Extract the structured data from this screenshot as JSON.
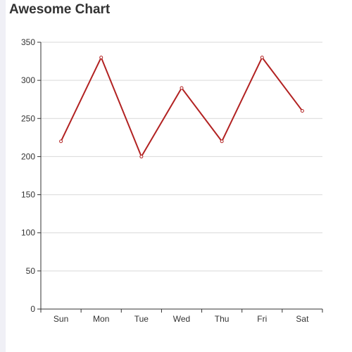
{
  "title": "Awesome Chart",
  "chart_data": {
    "type": "line",
    "title": "Awesome Chart",
    "categories": [
      "Sun",
      "Mon",
      "Tue",
      "Wed",
      "Thu",
      "Fri",
      "Sat"
    ],
    "series": [
      {
        "values": [
          220,
          330,
          200,
          290,
          220,
          330,
          260
        ]
      }
    ],
    "ylim": [
      0,
      350
    ],
    "yticks": [
      0,
      50,
      100,
      150,
      200,
      250,
      300,
      350
    ],
    "xlabel": "",
    "ylabel": "",
    "grid": true,
    "colors": {
      "line": "#b22222",
      "marker_fill": "#ffffff",
      "grid": "#d9d9d9",
      "axis": "#333333"
    }
  }
}
